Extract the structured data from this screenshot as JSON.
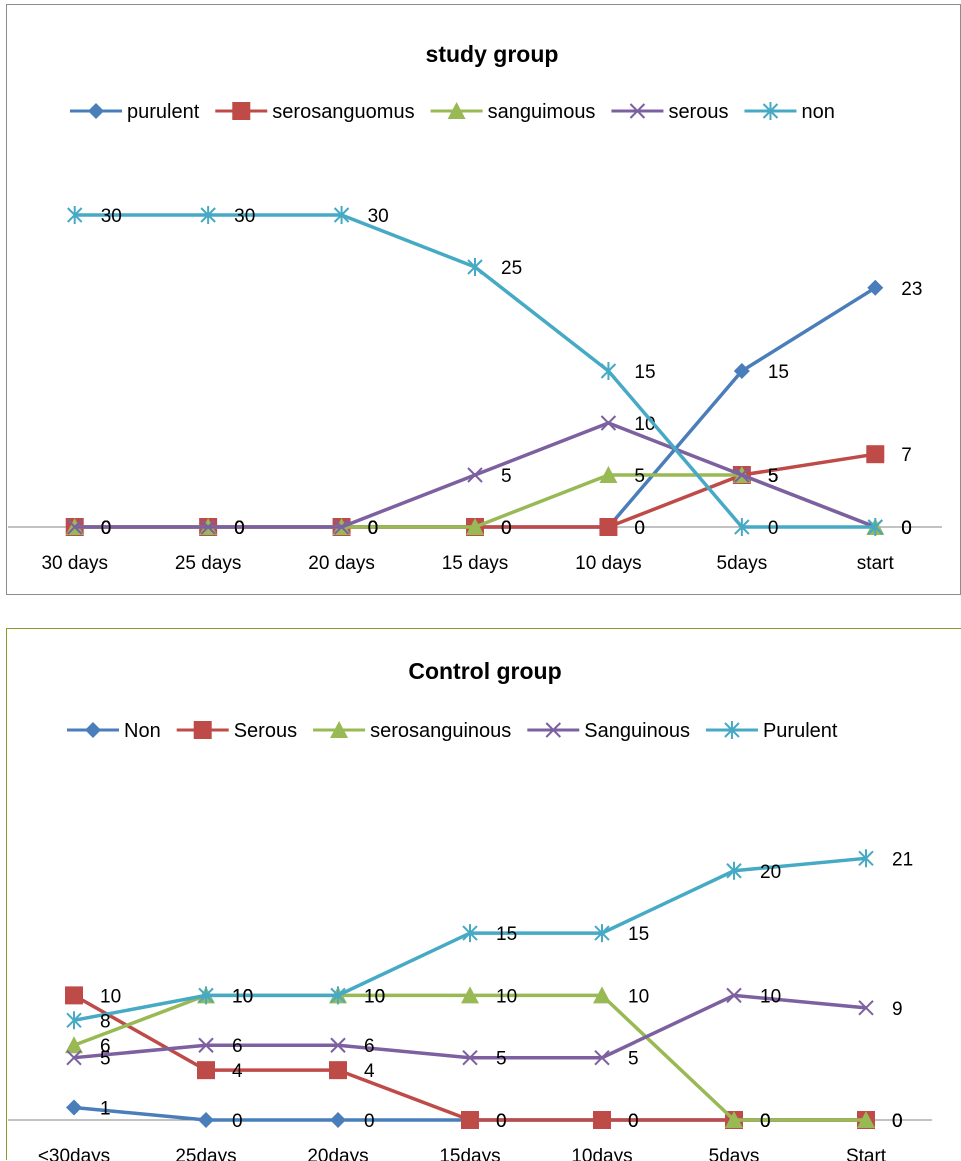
{
  "chart_data": [
    {
      "type": "line",
      "title": "study group",
      "categories": [
        "30 days",
        "25 days",
        "20 days",
        "15 days",
        "10 days",
        "5days",
        "start"
      ],
      "ylim": [
        0,
        30
      ],
      "grid": false,
      "legend_position": "top",
      "series": [
        {
          "name": "purulent",
          "values": [
            0,
            0,
            0,
            0,
            0,
            15,
            23
          ],
          "color": "#4a7ebb",
          "marker": "diamond"
        },
        {
          "name": "serosanguomus",
          "values": [
            0,
            0,
            0,
            0,
            0,
            5,
            7
          ],
          "color": "#be4b48",
          "marker": "square"
        },
        {
          "name": "sanguimous",
          "values": [
            0,
            0,
            0,
            0,
            5,
            5,
            0
          ],
          "color": "#98b954",
          "marker": "triangle"
        },
        {
          "name": "serous",
          "values": [
            0,
            0,
            0,
            5,
            10,
            5,
            0
          ],
          "color": "#7d60a0",
          "marker": "x"
        },
        {
          "name": "non",
          "values": [
            30,
            30,
            30,
            25,
            15,
            0,
            0
          ],
          "color": "#46aac5",
          "marker": "star"
        }
      ]
    },
    {
      "type": "line",
      "title": "Control group",
      "categories": [
        "<30days",
        "25days",
        "20days",
        "15days",
        "10days",
        "5days",
        "Start"
      ],
      "ylim": [
        0,
        26
      ],
      "grid": false,
      "legend_position": "top",
      "series": [
        {
          "name": "Non",
          "values": [
            1,
            0,
            0,
            0,
            0,
            0,
            0
          ],
          "color": "#4a7ebb",
          "marker": "diamond"
        },
        {
          "name": "Serous",
          "values": [
            10,
            4,
            4,
            0,
            0,
            0,
            0
          ],
          "color": "#be4b48",
          "marker": "square"
        },
        {
          "name": "serosanguinous",
          "values": [
            6,
            10,
            10,
            10,
            10,
            0,
            0
          ],
          "color": "#98b954",
          "marker": "triangle"
        },
        {
          "name": "Sanguinous",
          "values": [
            5,
            6,
            6,
            5,
            5,
            10,
            9
          ],
          "color": "#7d60a0",
          "marker": "x"
        },
        {
          "name": "Purulent",
          "values": [
            8,
            10,
            10,
            15,
            15,
            20,
            21
          ],
          "color": "#46aac5",
          "marker": "star"
        }
      ]
    }
  ]
}
